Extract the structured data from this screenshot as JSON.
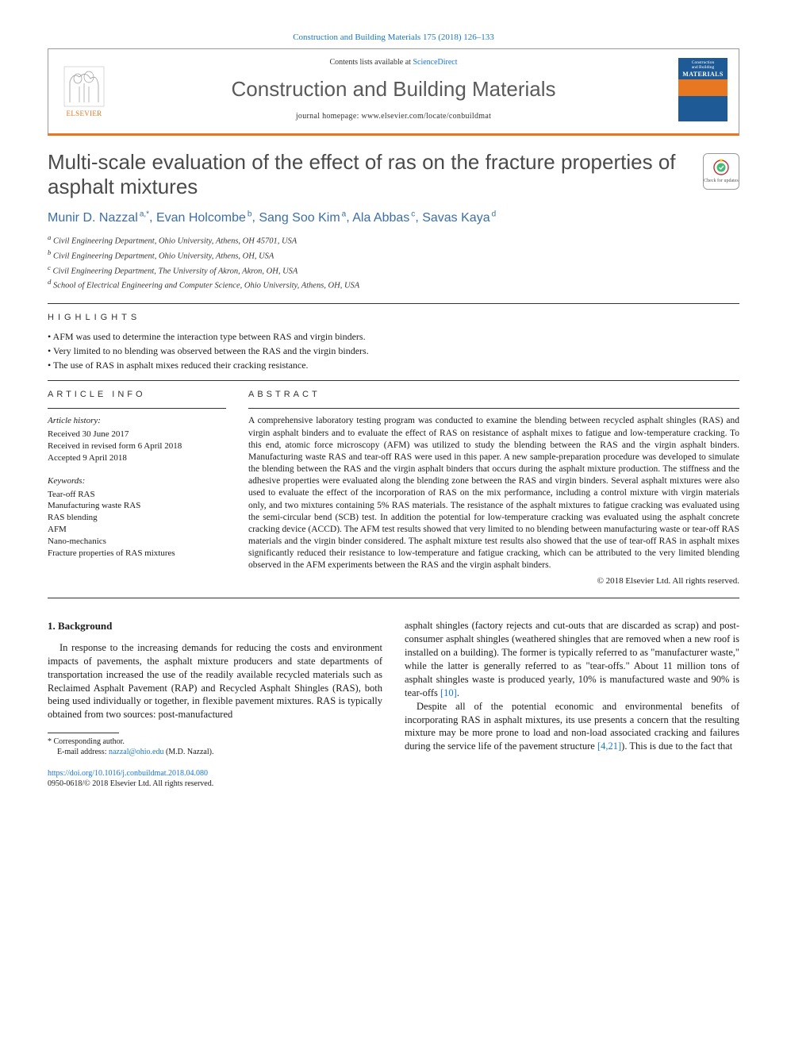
{
  "journal_ref": "Construction and Building Materials 175 (2018) 126–133",
  "header": {
    "publisher": "ELSEVIER",
    "contents_prefix": "Contents lists available at ",
    "contents_link": "ScienceDirect",
    "journal_name": "Construction and Building Materials",
    "homepage_prefix": "journal homepage: ",
    "homepage_url": "www.elsevier.com/locate/conbuildmat",
    "cover_top1": "Construction",
    "cover_top2": "and Building",
    "cover_mat": "MATERIALS",
    "accent_color": "#e87722",
    "link_color": "#1976d2"
  },
  "title": "Multi-scale evaluation of the effect of ras on the fracture properties of asphalt mixtures",
  "check_updates": "Check for updates",
  "authors_html": "Munir D. Nazzal",
  "authors": [
    {
      "name": "Munir D. Nazzal",
      "sup": "a,*"
    },
    {
      "name": "Evan Holcombe",
      "sup": "b"
    },
    {
      "name": "Sang Soo Kim",
      "sup": "a"
    },
    {
      "name": "Ala Abbas",
      "sup": "c"
    },
    {
      "name": "Savas Kaya",
      "sup": "d"
    }
  ],
  "affiliations": [
    {
      "sup": "a",
      "text": "Civil Engineering Department, Ohio University, Athens, OH 45701, USA"
    },
    {
      "sup": "b",
      "text": "Civil Engineering Department, Ohio University, Athens, OH, USA"
    },
    {
      "sup": "c",
      "text": "Civil Engineering Department, The University of Akron, Akron, OH, USA"
    },
    {
      "sup": "d",
      "text": "School of Electrical Engineering and Computer Science, Ohio University, Athens, OH, USA"
    }
  ],
  "highlights_head": "HIGHLIGHTS",
  "highlights": [
    "AFM was used to determine the interaction type between RAS and virgin binders.",
    "Very limited to no blending was observed between the RAS and the virgin binders.",
    "The use of RAS in asphalt mixes reduced their cracking resistance."
  ],
  "article_info_head": "ARTICLE INFO",
  "abstract_head": "ABSTRACT",
  "history_head": "Article history:",
  "history": [
    "Received 30 June 2017",
    "Received in revised form 6 April 2018",
    "Accepted 9 April 2018"
  ],
  "keywords_head": "Keywords:",
  "keywords": [
    "Tear-off RAS",
    "Manufacturing waste RAS",
    "RAS blending",
    "AFM",
    "Nano-mechanics",
    "Fracture properties of RAS mixtures"
  ],
  "abstract": "A comprehensive laboratory testing program was conducted to examine the blending between recycled asphalt shingles (RAS) and virgin asphalt binders and to evaluate the effect of RAS on resistance of asphalt mixes to fatigue and low-temperature cracking. To this end, atomic force microscopy (AFM) was utilized to study the blending between the RAS and the virgin asphalt binders. Manufacturing waste RAS and tear-off RAS were used in this paper. A new sample-preparation procedure was developed to simulate the blending between the RAS and the virgin asphalt binders that occurs during the asphalt mixture production. The stiffness and the adhesive properties were evaluated along the blending zone between the RAS and virgin binders. Several asphalt mixtures were also used to evaluate the effect of the incorporation of RAS on the mix performance, including a control mixture with virgin materials only, and two mixtures containing 5% RAS materials. The resistance of the asphalt mixtures to fatigue cracking was evaluated using the semi-circular bend (SCB) test. In addition the potential for low-temperature cracking was evaluated using the asphalt concrete cracking device (ACCD). The AFM test results showed that very limited to no blending between manufacturing waste or tear-off RAS materials and the virgin binder considered. The asphalt mixture test results also showed that the use of tear-off RAS in asphalt mixes significantly reduced their resistance to low-temperature and fatigue cracking, which can be attributed to the very limited blending observed in the AFM experiments between the RAS and the virgin asphalt binders.",
  "copyright": "© 2018 Elsevier Ltd. All rights reserved.",
  "body": {
    "heading": "1. Background",
    "p1": "In response to the increasing demands for reducing the costs and environment impacts of pavements, the asphalt mixture producers and state departments of transportation increased the use of the readily available recycled materials such as Reclaimed Asphalt Pavement (RAP) and Recycled Asphalt Shingles (RAS), both being used individually or together, in flexible pavement mixtures. RAS is typically obtained from two sources: post-manufactured",
    "p2a": "asphalt shingles (factory rejects and cut-outs that are discarded as scrap) and post-consumer asphalt shingles (weathered shingles that are removed when a new roof is installed on a building). The former is typically referred to as \"manufacturer waste,\" while the latter is generally referred to as \"tear-offs.\" About 11 million tons of asphalt shingles waste is produced yearly, 10% is manufactured waste and 90% is tear-offs ",
    "p2_ref": "[10]",
    "p2b": ".",
    "p3a": "Despite all of the potential economic and environmental benefits of incorporating RAS in asphalt mixtures, its use presents a concern that the resulting mixture may be more prone to load and non-load associated cracking and failures during the service life of the pavement structure ",
    "p3_ref": "[4,21]",
    "p3b": "). This is due to the fact that"
  },
  "footnote": {
    "corr": "* Corresponding author.",
    "email_label": "E-mail address: ",
    "email": "nazzal@ohio.edu",
    "email_who": " (M.D. Nazzal)."
  },
  "doi": {
    "url": "https://doi.org/10.1016/j.conbuildmat.2018.04.080",
    "issn": "0950-0618/© 2018 Elsevier Ltd. All rights reserved."
  }
}
